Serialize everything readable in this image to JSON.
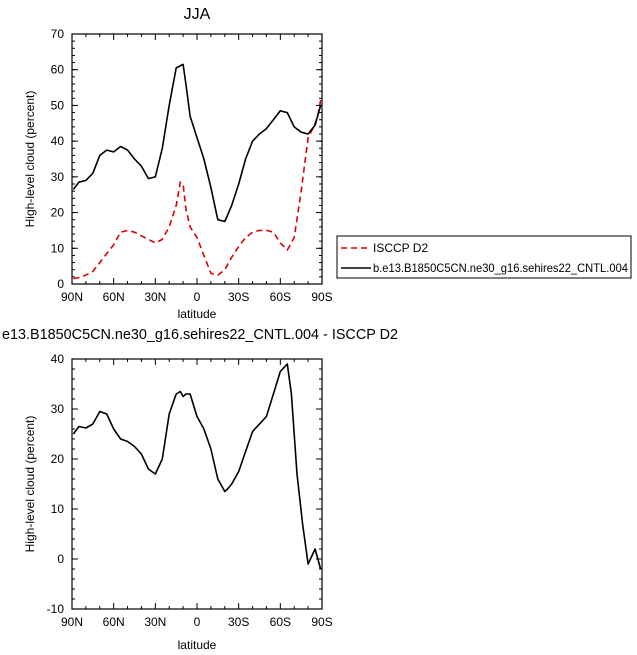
{
  "chart_data": [
    {
      "type": "line",
      "title": "JJA",
      "xlabel": "latitude",
      "ylabel": "High-level cloud (percent)",
      "xlim": [
        90,
        -90
      ],
      "ylim": [
        0,
        70
      ],
      "x_ticks": [
        90,
        60,
        30,
        0,
        -30,
        -60,
        -90
      ],
      "x_tick_labels": [
        "90N",
        "60N",
        "30N",
        "0",
        "30S",
        "60S",
        "90S"
      ],
      "y_ticks": [
        0,
        10,
        20,
        30,
        40,
        50,
        60,
        70
      ],
      "y_tick_labels": [
        "0",
        "10",
        "20",
        "30",
        "40",
        "50",
        "60",
        "70"
      ],
      "grid": false,
      "legend_position": "right, outside the plot",
      "series": [
        {
          "name": "ISCCP D2",
          "color": "#e00000",
          "style": "dashed",
          "x": [
            89,
            85,
            80,
            75,
            70,
            65,
            60,
            55,
            50,
            45,
            40,
            35,
            30,
            25,
            20,
            15,
            12,
            10,
            8,
            5,
            0,
            -5,
            -10,
            -15,
            -20,
            -25,
            -30,
            -35,
            -40,
            -45,
            -50,
            -55,
            -60,
            -65,
            -70,
            -75,
            -80,
            -84,
            -87,
            -89
          ],
          "values": [
            1.5,
            1.8,
            2.5,
            3.5,
            6,
            8.5,
            11,
            14.5,
            15,
            14.5,
            13.5,
            12.5,
            11.5,
            12.5,
            16,
            22,
            28.5,
            28,
            21,
            16,
            13,
            8,
            3,
            2.5,
            4,
            7.5,
            10.5,
            13,
            14.5,
            15,
            15,
            14.5,
            11.5,
            9.5,
            13,
            26,
            41,
            44,
            47,
            51.5
          ]
        },
        {
          "name": "b.e13.B1850C5CN.ne30_g16.sehires22_CNTL.004",
          "color": "#000000",
          "style": "solid",
          "x": [
            89,
            85,
            80,
            75,
            70,
            65,
            60,
            55,
            50,
            45,
            40,
            35,
            30,
            25,
            20,
            15,
            10,
            8,
            5,
            0,
            -5,
            -10,
            -15,
            -20,
            -25,
            -30,
            -35,
            -40,
            -45,
            -50,
            -55,
            -60,
            -65,
            -70,
            -75,
            -80,
            -85,
            -89
          ],
          "values": [
            26.5,
            28.5,
            29,
            31,
            36,
            37.5,
            37,
            38.5,
            37.5,
            35,
            33,
            29.5,
            30,
            38,
            50,
            60.5,
            61.5,
            56,
            47,
            41,
            35,
            27,
            18,
            17.5,
            22,
            28,
            35,
            40,
            42,
            43.5,
            46,
            48.5,
            48,
            44,
            42.5,
            42,
            44.5,
            50
          ]
        }
      ]
    },
    {
      "type": "line",
      "title": "e13.B1850C5CN.ne30_g16.sehires22_CNTL.004 - ISCCP D2",
      "xlabel": "latitude",
      "ylabel": "High-level cloud (percent)",
      "xlim": [
        90,
        -90
      ],
      "ylim": [
        -10,
        40
      ],
      "x_ticks": [
        90,
        60,
        30,
        0,
        -30,
        -60,
        -90
      ],
      "x_tick_labels": [
        "90N",
        "60N",
        "30N",
        "0",
        "30S",
        "60S",
        "90S"
      ],
      "y_ticks": [
        -10,
        0,
        10,
        20,
        30,
        40
      ],
      "y_tick_labels": [
        "-10",
        "0",
        "10",
        "20",
        "30",
        "40"
      ],
      "grid": false,
      "series": [
        {
          "color": "#000000",
          "style": "solid",
          "x": [
            89,
            85,
            80,
            75,
            70,
            65,
            60,
            55,
            50,
            45,
            40,
            35,
            30,
            25,
            20,
            15,
            12,
            10,
            8,
            5,
            0,
            -5,
            -10,
            -15,
            -20,
            -22,
            -25,
            -30,
            -35,
            -40,
            -45,
            -50,
            -55,
            -60,
            -65,
            -68,
            -72,
            -76,
            -80,
            -85,
            -89
          ],
          "values": [
            25,
            26.5,
            26.2,
            27,
            29.5,
            29,
            26,
            24,
            23.5,
            22.5,
            21,
            18,
            17,
            20,
            29,
            33,
            33.5,
            32.5,
            33,
            33,
            28.5,
            26,
            22,
            16,
            13.5,
            14,
            15,
            17.5,
            21.5,
            25.5,
            27,
            28.5,
            33,
            37.5,
            39,
            33,
            17,
            7,
            -1,
            2,
            -2
          ]
        }
      ]
    }
  ]
}
